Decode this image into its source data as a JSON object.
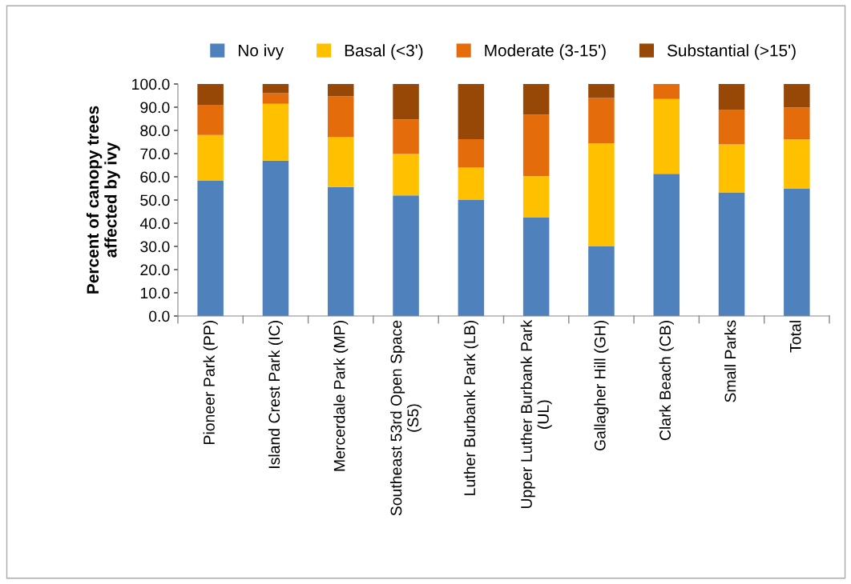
{
  "chart_data": {
    "type": "bar",
    "stacked": true,
    "ylabel": "Percent of canopy trees\naffected by ivy",
    "categories": [
      "Pioneer Park (PP)",
      "Island Crest Park (IC)",
      "Mercerdale Park (MP)",
      "Southeast 53rd Open Space\n(S5)",
      "Luther Burbank Park (LB)",
      "Upper Luther Burbank Park\n(UL)",
      "Gallagher Hill (GH)",
      "Clark Beach (CB)",
      "Small Parks",
      "Total"
    ],
    "series": [
      {
        "name": "No ivy",
        "color": "#4f81bd",
        "values": [
          58.3,
          67,
          55.6,
          52,
          50.2,
          42.6,
          30,
          61.3,
          53.3,
          55
        ]
      },
      {
        "name": "Basal (<3')",
        "color": "#ffc000",
        "values": [
          19.7,
          24.5,
          21.5,
          17.8,
          13.8,
          17.7,
          44.5,
          32.2,
          20.7,
          21.1
        ]
      },
      {
        "name": "Moderate (3-15')",
        "color": "#e46c0a",
        "values": [
          13,
          4.5,
          17.6,
          14.9,
          12.2,
          26.5,
          19.5,
          6.5,
          15,
          13.8
        ]
      },
      {
        "name": "Substantial (>15')",
        "color": "#974706",
        "values": [
          9,
          4,
          5.3,
          15.3,
          23.8,
          13.2,
          6,
          0,
          11,
          10.1
        ]
      }
    ],
    "ylim": [
      0,
      100
    ],
    "yticks": [
      {
        "value": 0,
        "label": "0.0"
      },
      {
        "value": 10,
        "label": "10.0"
      },
      {
        "value": 20,
        "label": "20.0"
      },
      {
        "value": 30,
        "label": "30.0"
      },
      {
        "value": 40,
        "label": "40.0"
      },
      {
        "value": 50,
        "label": "50.0"
      },
      {
        "value": 60,
        "label": "60.0"
      },
      {
        "value": 70,
        "label": "70.0"
      },
      {
        "value": 80,
        "label": "80.0"
      },
      {
        "value": 90,
        "label": "90.0"
      },
      {
        "value": 100,
        "label": "100.0"
      }
    ],
    "grid": false,
    "legend": "top"
  }
}
